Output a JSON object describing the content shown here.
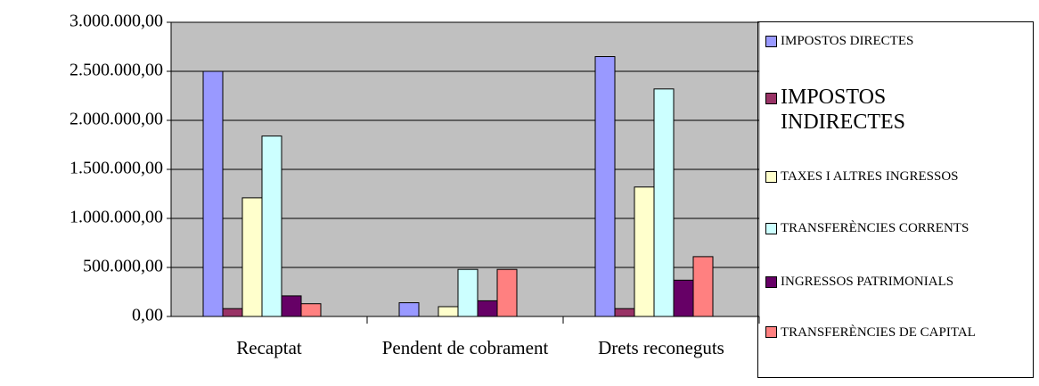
{
  "chart_data": {
    "type": "bar",
    "categories": [
      "Recaptat",
      "Pendent de cobrament",
      "Drets reconeguts"
    ],
    "series": [
      {
        "name": "IMPOSTOS DIRECTES",
        "color": "#9999ff",
        "values": [
          2500000,
          140000,
          2650000
        ]
      },
      {
        "name": "IMPOSTOS INDIRECTES",
        "color": "#993366",
        "values": [
          80000,
          0,
          80000
        ]
      },
      {
        "name": "TAXES I ALTRES INGRESSOS",
        "color": "#ffffcc",
        "values": [
          1210000,
          100000,
          1320000
        ]
      },
      {
        "name": "TRANSFERÈNCIES CORRENTS",
        "color": "#ccffff",
        "values": [
          1840000,
          480000,
          2320000
        ]
      },
      {
        "name": "INGRESSOS PATRIMONIALS",
        "color": "#660066",
        "values": [
          210000,
          160000,
          370000
        ]
      },
      {
        "name": "TRANSFERÈNCIES DE CAPITAL",
        "color": "#ff8080",
        "values": [
          130000,
          480000,
          610000
        ]
      }
    ],
    "ylim": [
      0,
      3000000
    ],
    "yticks": [
      {
        "value": 0,
        "label": "0,00"
      },
      {
        "value": 500000,
        "label": "500.000,00"
      },
      {
        "value": 1000000,
        "label": "1.000.000,00"
      },
      {
        "value": 1500000,
        "label": "1.500.000,00"
      },
      {
        "value": 2000000,
        "label": "2.000.000,00"
      },
      {
        "value": 2500000,
        "label": "2.500.000,00"
      },
      {
        "value": 3000000,
        "label": "3.000.000,00"
      }
    ],
    "grid": true,
    "plot_background": "#c0c0c0",
    "legend": "right"
  }
}
